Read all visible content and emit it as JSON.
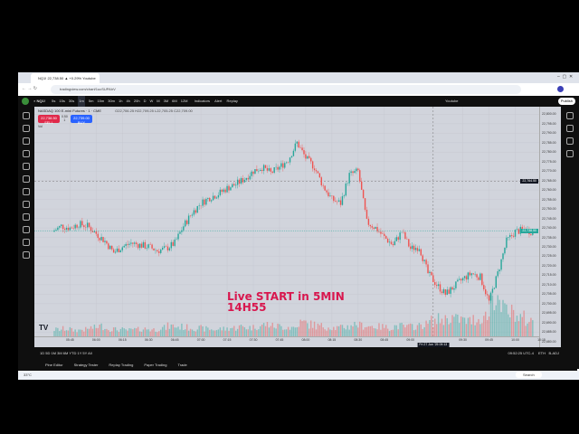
{
  "browser": {
    "tab_title": "NQ1! 22,738.50 ▲ +0.29% Youtube",
    "url": "tradingview.com/chart/1ucSUPAhV"
  },
  "toolbar": {
    "symbol": "NQ1!",
    "intervals": [
      "5s",
      "15s",
      "30s",
      "1m",
      "5m",
      "15m",
      "30m",
      "1h",
      "4h",
      "20h",
      "D",
      "W",
      "M",
      "3M",
      "6M",
      "12M"
    ],
    "active_interval": "1m",
    "indicators": "Indicators",
    "alert": "Alert",
    "replay": "Replay",
    "layout": "Youtube",
    "publish": "Publish"
  },
  "legend": {
    "title": "NASDAQ 100 E-mini Futures · 1 · CME",
    "ohlc": "O22,706.25 H22,709.25 L22,705.25 C22,709.00",
    "sell_price": "22,738.50",
    "sell_label": "SELL",
    "spread": "0.50",
    "qty": "1",
    "buy_price": "22,739.00",
    "buy_label": "BUY",
    "vol": "Vol"
  },
  "overlay": {
    "line1": "Live START in 5MIN",
    "line2": "14H55"
  },
  "bottom": {
    "ranges": "1D 5D 1M 3M 6M YTD 1Y 5Y All",
    "clock": "09:52:25 UTC-4",
    "session": "ETH",
    "adj": "B-ADJ"
  },
  "panels": [
    "Pine Editor",
    "Strategy Tester",
    "Replay Trading",
    "Paper Trading",
    "Trade"
  ],
  "taskbar": {
    "weather": "33°C",
    "search": "Search"
  },
  "colors": {
    "up": "#26a69a",
    "down": "#ef5350",
    "chart_bg": "#d1d4dc",
    "overlay": "#d8174e"
  },
  "chart_data": {
    "type": "candlestick",
    "interval": "1m",
    "price_ticks": [
      "22,800.00",
      "22,795.00",
      "22,790.00",
      "22,785.00",
      "22,780.00",
      "22,775.00",
      "22,770.00",
      "22,765.00",
      "22,760.00",
      "22,755.00",
      "22,750.00",
      "22,745.00",
      "22,740.00",
      "22,735.00",
      "22,730.00",
      "22,725.00",
      "22,720.00",
      "22,715.00",
      "22,710.00",
      "22,705.00",
      "22,700.00",
      "22,695.00",
      "22,690.00",
      "22,685.00",
      "22,680.00"
    ],
    "ylim": [
      22677,
      22804
    ],
    "time_ticks": [
      "05:45",
      "06:00",
      "06:15",
      "06:30",
      "06:45",
      "07:00",
      "07:15",
      "07:30",
      "07:45",
      "08:00",
      "08:15",
      "08:30",
      "08:45",
      "09:00",
      "09:30",
      "09:45",
      "10:00",
      "10:15"
    ],
    "crosshair_time": "Fri 27 Jun '25 09:13",
    "crosshair_price": "22,764.50",
    "last_price": "22,738.50",
    "last_price_countdown": "00:35",
    "start_time": "05:36",
    "closes_5min": [
      22738,
      22741,
      22740,
      22742,
      22741,
      22737,
      22733,
      22727,
      22730,
      22732,
      22731,
      22730,
      22728,
      22729,
      22732,
      22741,
      22748,
      22753,
      22756,
      22758,
      22761,
      22763,
      22766,
      22770,
      22772,
      22769,
      22772,
      22776,
      22785,
      22777,
      22772,
      22762,
      22755,
      22753,
      22768,
      22770,
      22743,
      22740,
      22735,
      22731,
      22738,
      22729,
      22730,
      22716,
      22710,
      22705,
      22709,
      22713,
      22716,
      22714,
      22701,
      22716,
      22733,
      22738,
      22739,
      22738
    ],
    "volume_5min": [
      20,
      22,
      18,
      20,
      25,
      30,
      22,
      20,
      18,
      20,
      22,
      20,
      25,
      30,
      28,
      26,
      24,
      22,
      20,
      22,
      25,
      28,
      26,
      30,
      35,
      30,
      28,
      26,
      40,
      35,
      30,
      28,
      25,
      28,
      35,
      32,
      30,
      28,
      26,
      30,
      28,
      30,
      35,
      45,
      50,
      55,
      50,
      45,
      50,
      60,
      120,
      80,
      70,
      55,
      45,
      40
    ]
  }
}
